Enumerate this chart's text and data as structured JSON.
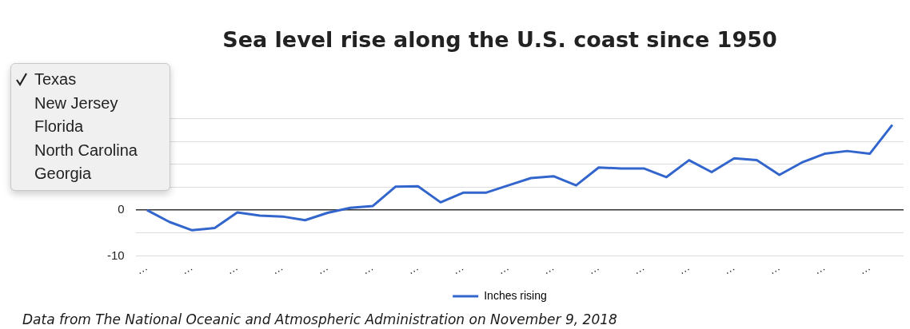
{
  "chart_data": {
    "type": "line",
    "title": "Sea level rise along the U.S. coast since 1950",
    "categories": [
      "…",
      null,
      "…",
      null,
      "…",
      null,
      "…",
      null,
      "…",
      null,
      "…",
      null,
      "…",
      null,
      "…",
      null,
      "…",
      null,
      "…",
      null,
      "…",
      null,
      "…",
      null,
      "…",
      null,
      "…",
      null,
      "…",
      null,
      "…",
      null,
      "…",
      null
    ],
    "series": [
      {
        "name": "Inches rising",
        "color": "#3366cc",
        "values": [
          0,
          -2.6,
          -4.4,
          -3.9,
          -0.5,
          -1.2,
          -1.4,
          -2.2,
          -0.6,
          0.5,
          0.9,
          5.1,
          5.2,
          1.7,
          3.8,
          3.8,
          5.4,
          7.0,
          7.4,
          5.4,
          9.3,
          9.1,
          9.1,
          7.2,
          10.9,
          8.3,
          11.3,
          10.9,
          7.7,
          10.4,
          12.3,
          12.9,
          12.3,
          18.6
        ]
      }
    ],
    "ylim": [
      -10,
      20
    ],
    "yticks": [
      -10,
      {
        "value": -5,
        "label": null
      },
      0,
      {
        "value": 5,
        "label": null
      },
      {
        "value": 10,
        "label": null
      },
      {
        "value": 15,
        "label": null
      },
      {
        "value": 20,
        "label": null
      }
    ],
    "grid": "y",
    "legend": "bottom",
    "marker": "none",
    "line_style": "solid",
    "annotations": [
      "Data from The National Oceanic and Atmospheric Administration on November 9, 2018",
      "Texas",
      "New Jersey",
      "Florida",
      "North Carolina",
      "Georgia"
    ]
  }
}
